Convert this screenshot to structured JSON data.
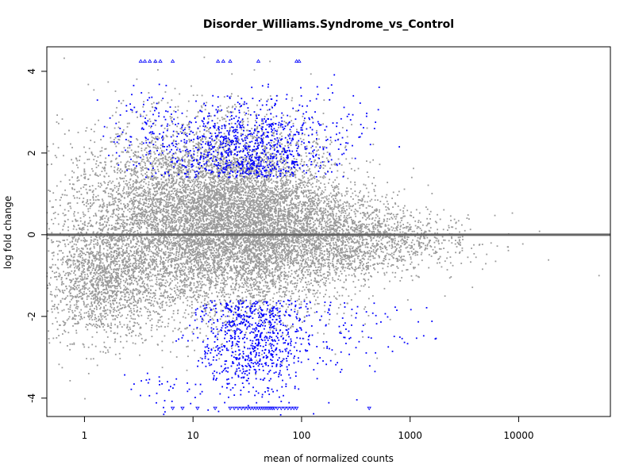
{
  "chart_data": {
    "type": "scatter",
    "title": "Disorder_Williams.Syndrome_vs_Control",
    "xlabel": "mean of normalized counts",
    "ylabel": "log fold change",
    "x_scale": "log10",
    "xlim": [
      0.45,
      70000
    ],
    "ylim": [
      -4.45,
      4.6
    ],
    "x_ticks": [
      1,
      10,
      100,
      1000,
      10000
    ],
    "x_tick_labels": [
      "1",
      "10",
      "100",
      "1000",
      "10000"
    ],
    "y_ticks": [
      -4,
      -2,
      0,
      2,
      4
    ],
    "y_tick_labels": [
      "-4",
      "-2",
      "0",
      "2",
      "4"
    ],
    "reference_line_y": 0,
    "grid": false,
    "legend": "none",
    "colors": {
      "not_significant": "#999999",
      "significant": "#0000ff",
      "reference_line": "#666666"
    },
    "series": [
      {
        "clusters": [
          {
            "x_center": 1.5,
            "x_spread_log10": 0.3,
            "y_center": -1.2,
            "y_spread": 0.7,
            "count": 1500
          },
          {
            "x_center": 8,
            "x_spread_log10": 0.55,
            "y_center": 0.4,
            "y_spread": 1.1,
            "count": 5500
          },
          {
            "x_center": 35,
            "x_spread_log10": 0.45,
            "y_center": 0.3,
            "y_spread": 1.1,
            "count": 4500
          },
          {
            "x_center": 200,
            "x_spread_log10": 0.45,
            "y_center": -0.1,
            "y_spread": 0.55,
            "count": 1800
          },
          {
            "x_center": 1000,
            "x_spread_log10": 0.4,
            "y_center": -0.1,
            "y_spread": 0.3,
            "count": 250
          }
        ],
        "extra_points": [
          {
            "x": 4000,
            "y": 0
          },
          {
            "x": 8000,
            "y": -0.3
          },
          {
            "x": 55000,
            "y": -1.0
          }
        ]
      },
      {
        "clusters": [
          {
            "x_center": 30,
            "x_spread_log10": 0.35,
            "y_center": 2.1,
            "y_spread": 0.55,
            "count": 900
          },
          {
            "x_center": 3.5,
            "x_spread_log10": 0.2,
            "y_center": 2.6,
            "y_spread": 0.5,
            "count": 100
          },
          {
            "x_center": 130,
            "x_spread_log10": 0.3,
            "y_center": 2.4,
            "y_spread": 0.6,
            "count": 80
          },
          {
            "x_center": 35,
            "x_spread_log10": 0.25,
            "y_center": -2.6,
            "y_spread": 0.7,
            "count": 800
          },
          {
            "x_center": 300,
            "x_spread_log10": 0.35,
            "y_center": -2.2,
            "y_spread": 0.6,
            "count": 100
          },
          {
            "x_center": 5,
            "x_spread_log10": 0.2,
            "y_center": -3.8,
            "y_spread": 0.3,
            "count": 30
          }
        ],
        "clipped_top": [
          3.3,
          3.6,
          4.0,
          4.5,
          5.0,
          6.5,
          17,
          19,
          22,
          40,
          90,
          95
        ],
        "clipped_bottom": [
          6.5,
          8,
          11,
          16,
          22,
          24,
          26,
          28,
          30,
          32,
          34,
          36,
          38,
          40,
          42,
          44,
          46,
          48,
          50,
          52,
          54,
          56,
          60,
          65,
          70,
          75,
          80,
          85,
          90,
          420
        ]
      }
    ]
  }
}
